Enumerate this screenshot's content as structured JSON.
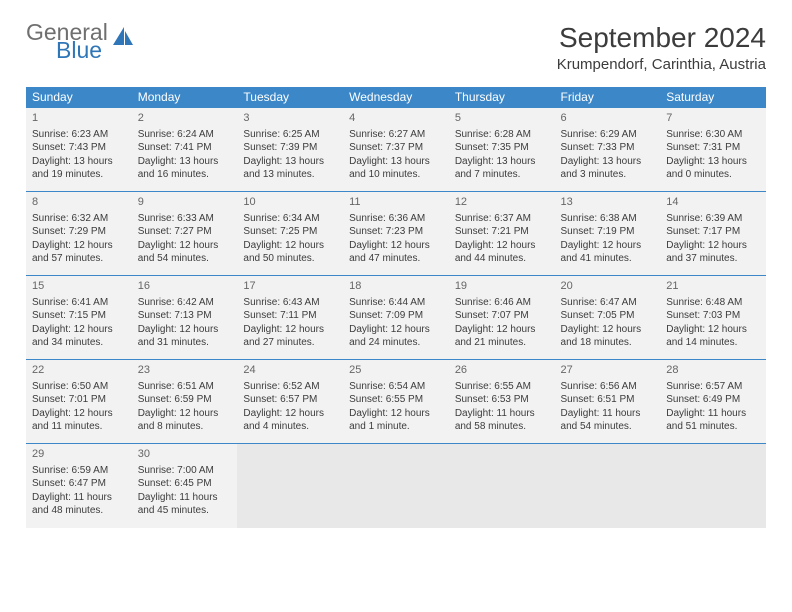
{
  "logo": {
    "word1": "General",
    "word2": "Blue",
    "icon_color": "#2f76b8",
    "word1_color": "#6f6f6f",
    "word2_color": "#2f76b8"
  },
  "title": "September 2024",
  "location": "Krumpendorf, Carinthia, Austria",
  "colors": {
    "header_bg": "#3b87c8",
    "header_fg": "#ffffff",
    "cell_bg": "#f2f2f2",
    "empty_bg": "#e8e8e8",
    "rule": "#3b87c8",
    "text": "#3c3c3c",
    "daynum": "#666666"
  },
  "fonts": {
    "title_pt": 28,
    "location_pt": 15,
    "dayhead_pt": 12,
    "cell_pt": 10,
    "daynum_pt": 11
  },
  "day_headers": [
    "Sunday",
    "Monday",
    "Tuesday",
    "Wednesday",
    "Thursday",
    "Friday",
    "Saturday"
  ],
  "weeks": [
    [
      {
        "n": "1",
        "sr": "Sunrise: 6:23 AM",
        "ss": "Sunset: 7:43 PM",
        "d1": "Daylight: 13 hours",
        "d2": "and 19 minutes."
      },
      {
        "n": "2",
        "sr": "Sunrise: 6:24 AM",
        "ss": "Sunset: 7:41 PM",
        "d1": "Daylight: 13 hours",
        "d2": "and 16 minutes."
      },
      {
        "n": "3",
        "sr": "Sunrise: 6:25 AM",
        "ss": "Sunset: 7:39 PM",
        "d1": "Daylight: 13 hours",
        "d2": "and 13 minutes."
      },
      {
        "n": "4",
        "sr": "Sunrise: 6:27 AM",
        "ss": "Sunset: 7:37 PM",
        "d1": "Daylight: 13 hours",
        "d2": "and 10 minutes."
      },
      {
        "n": "5",
        "sr": "Sunrise: 6:28 AM",
        "ss": "Sunset: 7:35 PM",
        "d1": "Daylight: 13 hours",
        "d2": "and 7 minutes."
      },
      {
        "n": "6",
        "sr": "Sunrise: 6:29 AM",
        "ss": "Sunset: 7:33 PM",
        "d1": "Daylight: 13 hours",
        "d2": "and 3 minutes."
      },
      {
        "n": "7",
        "sr": "Sunrise: 6:30 AM",
        "ss": "Sunset: 7:31 PM",
        "d1": "Daylight: 13 hours",
        "d2": "and 0 minutes."
      }
    ],
    [
      {
        "n": "8",
        "sr": "Sunrise: 6:32 AM",
        "ss": "Sunset: 7:29 PM",
        "d1": "Daylight: 12 hours",
        "d2": "and 57 minutes."
      },
      {
        "n": "9",
        "sr": "Sunrise: 6:33 AM",
        "ss": "Sunset: 7:27 PM",
        "d1": "Daylight: 12 hours",
        "d2": "and 54 minutes."
      },
      {
        "n": "10",
        "sr": "Sunrise: 6:34 AM",
        "ss": "Sunset: 7:25 PM",
        "d1": "Daylight: 12 hours",
        "d2": "and 50 minutes."
      },
      {
        "n": "11",
        "sr": "Sunrise: 6:36 AM",
        "ss": "Sunset: 7:23 PM",
        "d1": "Daylight: 12 hours",
        "d2": "and 47 minutes."
      },
      {
        "n": "12",
        "sr": "Sunrise: 6:37 AM",
        "ss": "Sunset: 7:21 PM",
        "d1": "Daylight: 12 hours",
        "d2": "and 44 minutes."
      },
      {
        "n": "13",
        "sr": "Sunrise: 6:38 AM",
        "ss": "Sunset: 7:19 PM",
        "d1": "Daylight: 12 hours",
        "d2": "and 41 minutes."
      },
      {
        "n": "14",
        "sr": "Sunrise: 6:39 AM",
        "ss": "Sunset: 7:17 PM",
        "d1": "Daylight: 12 hours",
        "d2": "and 37 minutes."
      }
    ],
    [
      {
        "n": "15",
        "sr": "Sunrise: 6:41 AM",
        "ss": "Sunset: 7:15 PM",
        "d1": "Daylight: 12 hours",
        "d2": "and 34 minutes."
      },
      {
        "n": "16",
        "sr": "Sunrise: 6:42 AM",
        "ss": "Sunset: 7:13 PM",
        "d1": "Daylight: 12 hours",
        "d2": "and 31 minutes."
      },
      {
        "n": "17",
        "sr": "Sunrise: 6:43 AM",
        "ss": "Sunset: 7:11 PM",
        "d1": "Daylight: 12 hours",
        "d2": "and 27 minutes."
      },
      {
        "n": "18",
        "sr": "Sunrise: 6:44 AM",
        "ss": "Sunset: 7:09 PM",
        "d1": "Daylight: 12 hours",
        "d2": "and 24 minutes."
      },
      {
        "n": "19",
        "sr": "Sunrise: 6:46 AM",
        "ss": "Sunset: 7:07 PM",
        "d1": "Daylight: 12 hours",
        "d2": "and 21 minutes."
      },
      {
        "n": "20",
        "sr": "Sunrise: 6:47 AM",
        "ss": "Sunset: 7:05 PM",
        "d1": "Daylight: 12 hours",
        "d2": "and 18 minutes."
      },
      {
        "n": "21",
        "sr": "Sunrise: 6:48 AM",
        "ss": "Sunset: 7:03 PM",
        "d1": "Daylight: 12 hours",
        "d2": "and 14 minutes."
      }
    ],
    [
      {
        "n": "22",
        "sr": "Sunrise: 6:50 AM",
        "ss": "Sunset: 7:01 PM",
        "d1": "Daylight: 12 hours",
        "d2": "and 11 minutes."
      },
      {
        "n": "23",
        "sr": "Sunrise: 6:51 AM",
        "ss": "Sunset: 6:59 PM",
        "d1": "Daylight: 12 hours",
        "d2": "and 8 minutes."
      },
      {
        "n": "24",
        "sr": "Sunrise: 6:52 AM",
        "ss": "Sunset: 6:57 PM",
        "d1": "Daylight: 12 hours",
        "d2": "and 4 minutes."
      },
      {
        "n": "25",
        "sr": "Sunrise: 6:54 AM",
        "ss": "Sunset: 6:55 PM",
        "d1": "Daylight: 12 hours",
        "d2": "and 1 minute."
      },
      {
        "n": "26",
        "sr": "Sunrise: 6:55 AM",
        "ss": "Sunset: 6:53 PM",
        "d1": "Daylight: 11 hours",
        "d2": "and 58 minutes."
      },
      {
        "n": "27",
        "sr": "Sunrise: 6:56 AM",
        "ss": "Sunset: 6:51 PM",
        "d1": "Daylight: 11 hours",
        "d2": "and 54 minutes."
      },
      {
        "n": "28",
        "sr": "Sunrise: 6:57 AM",
        "ss": "Sunset: 6:49 PM",
        "d1": "Daylight: 11 hours",
        "d2": "and 51 minutes."
      }
    ],
    [
      {
        "n": "29",
        "sr": "Sunrise: 6:59 AM",
        "ss": "Sunset: 6:47 PM",
        "d1": "Daylight: 11 hours",
        "d2": "and 48 minutes."
      },
      {
        "n": "30",
        "sr": "Sunrise: 7:00 AM",
        "ss": "Sunset: 6:45 PM",
        "d1": "Daylight: 11 hours",
        "d2": "and 45 minutes."
      },
      {
        "empty": true
      },
      {
        "empty": true
      },
      {
        "empty": true
      },
      {
        "empty": true
      },
      {
        "empty": true
      }
    ]
  ]
}
